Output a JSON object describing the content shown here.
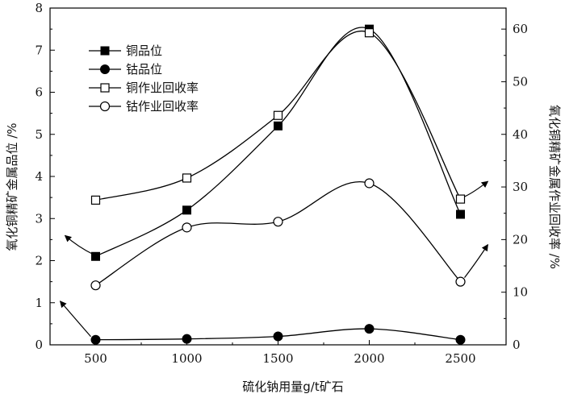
{
  "chart_data": {
    "type": "line",
    "xlabel": "硫化钠用量g/t矿石",
    "ylabel_left": "氧化铜精矿金属品位 /%",
    "ylabel_right": "氧化铜精矿金属作业回收率 /%",
    "x": [
      500,
      1000,
      1500,
      2000,
      2500
    ],
    "xlim": [
      250,
      2750
    ],
    "ylim_left": [
      0,
      8
    ],
    "ylim_right": [
      0,
      64
    ],
    "yticks_left": [
      0,
      1,
      2,
      3,
      4,
      5,
      6,
      7,
      8
    ],
    "yticks_right": [
      0,
      10,
      20,
      30,
      40,
      50,
      60
    ],
    "grid": false,
    "legend_position": "top-left",
    "series": [
      {
        "name": "铜品位",
        "axis": "left",
        "marker": "filled-square",
        "values": [
          2.1,
          3.2,
          5.2,
          7.5,
          3.1
        ]
      },
      {
        "name": "钴品位",
        "axis": "left",
        "marker": "filled-circle",
        "values": [
          0.12,
          0.14,
          0.2,
          0.38,
          0.12
        ]
      },
      {
        "name": "铜作业回收率",
        "axis": "right",
        "marker": "open-square",
        "values": [
          27.5,
          31.7,
          43.6,
          59.3,
          27.7
        ]
      },
      {
        "name": "钴作业回收率",
        "axis": "right",
        "marker": "open-circle",
        "values": [
          11.3,
          22.3,
          23.4,
          30.7,
          12
        ]
      }
    ]
  }
}
